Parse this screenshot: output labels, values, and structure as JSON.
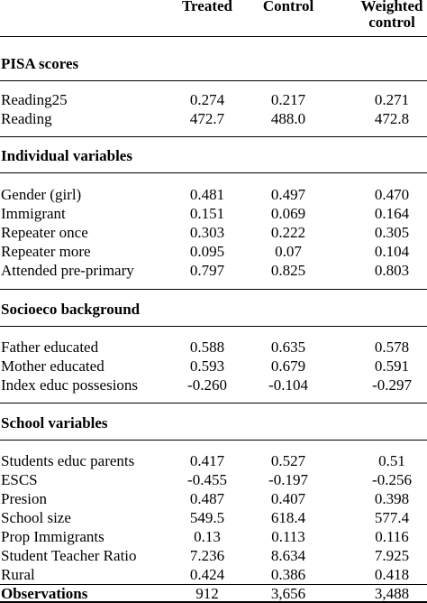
{
  "header": {
    "col1": "Treated",
    "col2": "Control",
    "col3_line1": "Weighted",
    "col3_line2": "control"
  },
  "sections": [
    {
      "title": "PISA scores",
      "rows": [
        {
          "label": "Reading25",
          "treated": "0.274",
          "control": "0.217",
          "weighted": "0.271"
        },
        {
          "label": "Reading",
          "treated": "472.7",
          "control": "488.0",
          "weighted": "472.8"
        }
      ]
    },
    {
      "title": "Individual variables",
      "rows": [
        {
          "label": "Gender (girl)",
          "treated": "0.481",
          "control": "0.497",
          "weighted": "0.470"
        },
        {
          "label": "Immigrant",
          "treated": "0.151",
          "control": "0.069",
          "weighted": "0.164"
        },
        {
          "label": "Repeater once",
          "treated": "0.303",
          "control": "0.222",
          "weighted": "0.305"
        },
        {
          "label": "Repeater more",
          "treated": "0.095",
          "control": "0.07",
          "weighted": "0.104"
        },
        {
          "label": "Attended pre-primary",
          "treated": "0.797",
          "control": "0.825",
          "weighted": "0.803"
        }
      ]
    },
    {
      "title": "Socioeco background",
      "rows": [
        {
          "label": "Father educated",
          "treated": "0.588",
          "control": "0.635",
          "weighted": "0.578"
        },
        {
          "label": "Mother educated",
          "treated": "0.593",
          "control": "0.679",
          "weighted": "0.591"
        },
        {
          "label": "Index educ possesions",
          "treated": "-0.260",
          "control": "-0.104",
          "weighted": "-0.297"
        }
      ]
    },
    {
      "title": "School variables",
      "rows": [
        {
          "label": "Students educ parents",
          "treated": "0.417",
          "control": "0.527",
          "weighted": "0.51"
        },
        {
          "label": "ESCS",
          "treated": "-0.455",
          "control": "-0.197",
          "weighted": "-0.256"
        },
        {
          "label": "Presion",
          "treated": "0.487",
          "control": "0.407",
          "weighted": "0.398"
        },
        {
          "label": "School size",
          "treated": "549.5",
          "control": "618.4",
          "weighted": "577.4"
        },
        {
          "label": "Prop Immigrants",
          "treated": "0.13",
          "control": "0.113",
          "weighted": "0.116"
        },
        {
          "label": "Student Teacher Ratio",
          "treated": "7.236",
          "control": "8.634",
          "weighted": "7.925"
        },
        {
          "label": "Rural",
          "treated": "0.424",
          "control": "0.386",
          "weighted": "0.418"
        }
      ]
    }
  ],
  "observations": {
    "label": "Observations",
    "treated": "912",
    "control": "3,656",
    "weighted": "3,488"
  }
}
